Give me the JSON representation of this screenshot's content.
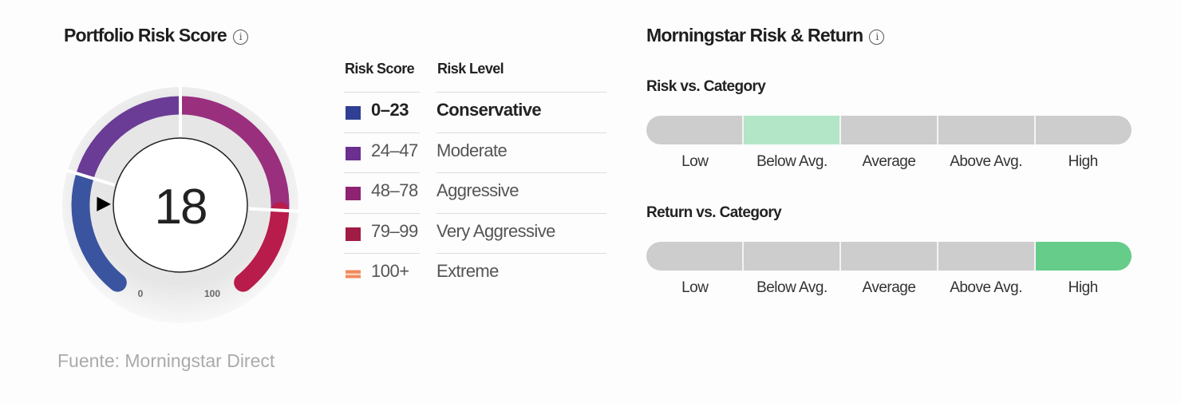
{
  "risk_score": {
    "title": "Portfolio Risk Score",
    "info_icon": "info-icon",
    "score": "18",
    "scale_min": "0",
    "scale_max": "100",
    "gauge_colors": [
      "#3a54a0",
      "#6a3c96",
      "#9a2f7e",
      "#b81c4a"
    ],
    "legend": {
      "header_score": "Risk Score",
      "header_level": "Risk Level",
      "rows": [
        {
          "score": "0–23",
          "level": "Conservative",
          "color": "#2f3f93",
          "active": true
        },
        {
          "score": "24–47",
          "level": "Moderate",
          "color": "#6b2f8f",
          "active": false
        },
        {
          "score": "48–78",
          "level": "Aggressive",
          "color": "#8e2372",
          "active": false
        },
        {
          "score": "79–99",
          "level": "Very Aggressive",
          "color": "#a01c45",
          "active": false
        },
        {
          "score": "100+",
          "level": "Extreme",
          "color": "#f08a5a",
          "active": false
        }
      ]
    }
  },
  "risk_return": {
    "title": "Morningstar Risk & Return",
    "info_icon": "info-icon",
    "risk": {
      "label": "Risk vs. Category",
      "selected": "Below Avg.",
      "selected_color": "#b2e6c6",
      "levels": [
        "Low",
        "Below Avg.",
        "Average",
        "Above Avg.",
        "High"
      ]
    },
    "return": {
      "label": "Return vs. Category",
      "selected": "High",
      "selected_color": "#66cc8a",
      "levels": [
        "Low",
        "Below Avg.",
        "Average",
        "Above Avg.",
        "High"
      ]
    }
  },
  "source": "Fuente: Morningstar Direct"
}
